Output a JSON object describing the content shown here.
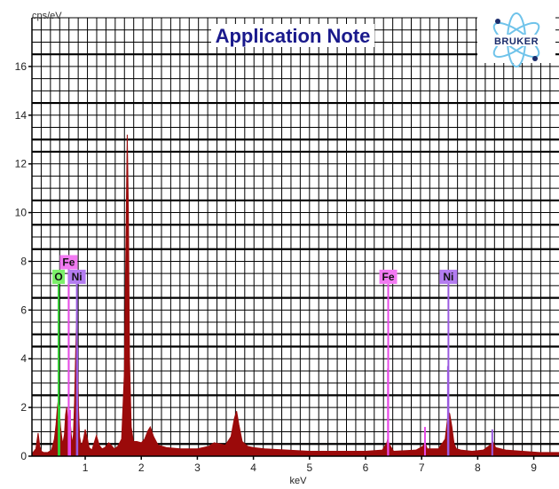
{
  "chart_data": {
    "type": "area",
    "title": "Application Note",
    "ylabel": "cps/eV",
    "xlabel": "keV",
    "xlim": [
      0.05,
      9.45
    ],
    "ylim": [
      0,
      18
    ],
    "x_ticks": [
      1,
      2,
      3,
      4,
      5,
      6,
      7,
      8,
      9
    ],
    "y_ticks": [
      0,
      2,
      4,
      6,
      8,
      10,
      12,
      14,
      16
    ],
    "grid": true,
    "series": [
      {
        "color": "#9b0a0a",
        "x": [
          0.05,
          0.12,
          0.16,
          0.19,
          0.22,
          0.26,
          0.33,
          0.4,
          0.45,
          0.48,
          0.5,
          0.52,
          0.54,
          0.56,
          0.58,
          0.6,
          0.63,
          0.65,
          0.67,
          0.69,
          0.7,
          0.71,
          0.73,
          0.75,
          0.77,
          0.79,
          0.81,
          0.83,
          0.85,
          0.86,
          0.88,
          0.9,
          0.93,
          0.97,
          1.0,
          1.04,
          1.07,
          1.12,
          1.2,
          1.25,
          1.3,
          1.35,
          1.42,
          1.48,
          1.52,
          1.58,
          1.65,
          1.7,
          1.73,
          1.75,
          1.77,
          1.79,
          1.82,
          1.86,
          1.92,
          2.0,
          2.06,
          2.12,
          2.16,
          2.22,
          2.3,
          2.45,
          2.7,
          3.0,
          3.2,
          3.3,
          3.4,
          3.5,
          3.6,
          3.66,
          3.7,
          3.74,
          3.8,
          3.9,
          4.0,
          4.2,
          4.6,
          5.0,
          5.5,
          6.0,
          6.3,
          6.38,
          6.4,
          6.42,
          6.5,
          6.9,
          7.02,
          7.06,
          7.1,
          7.3,
          7.42,
          7.46,
          7.48,
          7.5,
          7.54,
          7.58,
          7.62,
          7.7,
          7.9,
          8.1,
          8.22,
          8.27,
          8.32,
          8.5,
          8.8,
          9.1,
          9.45
        ],
        "values": [
          0.1,
          0.3,
          0.95,
          0.4,
          0.2,
          0.15,
          0.15,
          0.25,
          0.7,
          1.3,
          1.9,
          2.3,
          1.8,
          1.2,
          0.8,
          0.5,
          0.9,
          1.7,
          2.0,
          1.4,
          1.0,
          1.6,
          1.5,
          0.9,
          0.5,
          0.9,
          2.2,
          4.3,
          6.0,
          4.5,
          2.0,
          0.8,
          0.4,
          0.7,
          1.1,
          0.7,
          0.35,
          0.25,
          0.85,
          0.45,
          0.3,
          0.35,
          0.55,
          0.4,
          0.3,
          0.4,
          0.7,
          3.5,
          9.5,
          13.2,
          10.0,
          4.0,
          1.2,
          0.6,
          0.6,
          0.55,
          0.7,
          1.05,
          1.2,
          0.8,
          0.45,
          0.35,
          0.3,
          0.3,
          0.4,
          0.55,
          0.5,
          0.45,
          0.8,
          1.55,
          1.85,
          1.3,
          0.6,
          0.4,
          0.35,
          0.3,
          0.25,
          0.2,
          0.2,
          0.2,
          0.25,
          0.55,
          0.75,
          0.5,
          0.2,
          0.25,
          0.4,
          0.55,
          0.3,
          0.3,
          0.7,
          1.5,
          1.8,
          1.75,
          1.2,
          0.5,
          0.3,
          0.25,
          0.2,
          0.25,
          0.45,
          0.6,
          0.35,
          0.25,
          0.2,
          0.15,
          0.15
        ]
      }
    ],
    "peak_lines": [
      {
        "label": "O",
        "x": 0.525,
        "height": 7.4,
        "color": "#33cc33",
        "badge": "#7cf06a"
      },
      {
        "label": "Fe",
        "x": 0.705,
        "height": 8.0,
        "color": "#e84ae8",
        "badge": "#f27af2"
      },
      {
        "label": "Ni",
        "x": 0.851,
        "height": 7.4,
        "color": "#9a5ae0",
        "badge": "#b37cf0"
      },
      {
        "label": "Fe",
        "x": 6.404,
        "height": 7.4,
        "color": "#e84ae8",
        "badge": "#f27af2"
      },
      {
        "label": "Ni",
        "x": 7.478,
        "height": 7.4,
        "color": "#9a5ae0",
        "badge": "#b37cf0"
      }
    ],
    "minor_lines": [
      {
        "x": 0.54,
        "height": 2.1,
        "color": "#33cc33"
      },
      {
        "x": 0.73,
        "height": 1.9,
        "color": "#e84ae8"
      },
      {
        "x": 0.86,
        "height": 4.5,
        "color": "#9a5ae0"
      },
      {
        "x": 6.4,
        "height": 3.6,
        "color": "#e84ae8"
      },
      {
        "x": 7.06,
        "height": 1.2,
        "color": "#e84ae8"
      },
      {
        "x": 7.47,
        "height": 3.7,
        "color": "#9a5ae0"
      },
      {
        "x": 8.26,
        "height": 1.1,
        "color": "#9a5ae0"
      }
    ]
  },
  "logo": {
    "text": "BRUKER",
    "color": "#1b2c6b"
  }
}
